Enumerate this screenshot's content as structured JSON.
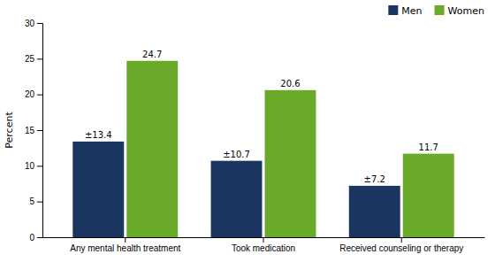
{
  "chart_data": {
    "type": "bar",
    "categories": [
      "Any mental health treatment",
      "Took medication",
      "Received counseling or therapy"
    ],
    "series": [
      {
        "name": "Men",
        "color": "#1a3560",
        "values": [
          13.4,
          10.7,
          7.2
        ],
        "value_labels": [
          "±13.4",
          "±10.7",
          "±7.2"
        ]
      },
      {
        "name": "Women",
        "color": "#6aaa2a",
        "values": [
          24.7,
          20.6,
          11.7
        ]
      }
    ],
    "ylabel": "Percent",
    "ylim": [
      0,
      30
    ],
    "yticks": [
      0,
      5,
      10,
      15,
      20,
      25,
      30
    ],
    "grid": false,
    "legend": "upper right",
    "data_labels": true
  }
}
